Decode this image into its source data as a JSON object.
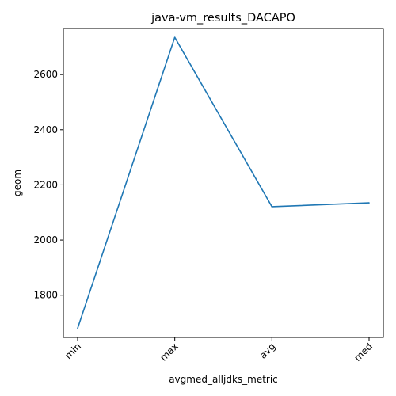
{
  "chart_data": {
    "type": "line",
    "title": "java-vm_results_DACAPO",
    "xlabel": "avgmed_alljdks_metric",
    "ylabel": "geom",
    "categories": [
      "min",
      "max",
      "avg",
      "med"
    ],
    "series": [
      {
        "values": [
          1680,
          2735,
          2121,
          2135
        ],
        "color": "#1f77b4"
      }
    ],
    "ylim": [
      1647,
      2767
    ],
    "yticks": [
      1800,
      2000,
      2200,
      2400,
      2600
    ],
    "grid": false,
    "legend": "none"
  }
}
